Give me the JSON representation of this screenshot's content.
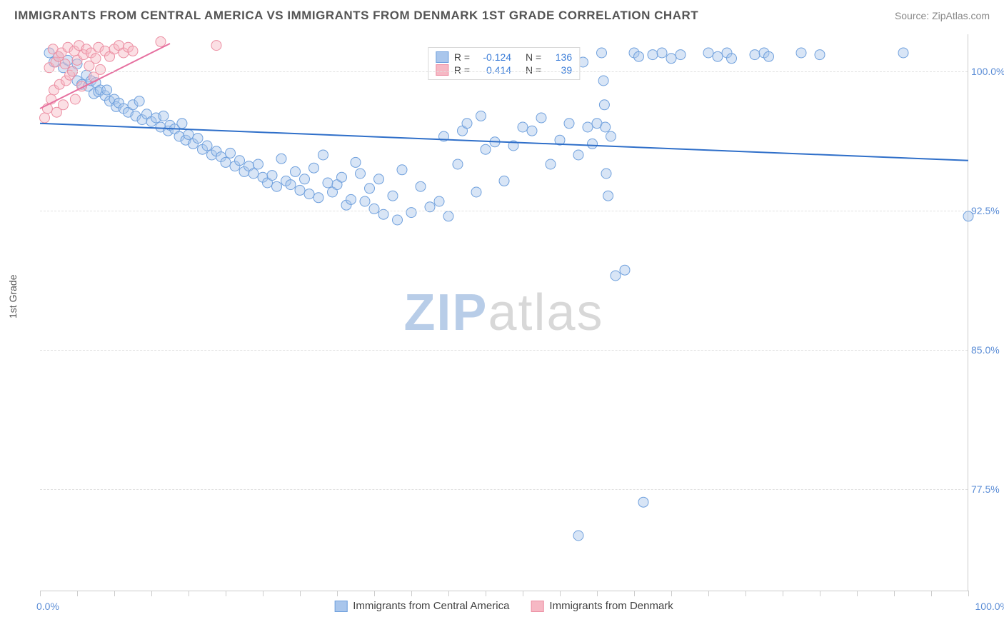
{
  "title": "IMMIGRANTS FROM CENTRAL AMERICA VS IMMIGRANTS FROM DENMARK 1ST GRADE CORRELATION CHART",
  "source_prefix": "Source: ",
  "source_name": "ZipAtlas.com",
  "ylabel": "1st Grade",
  "watermark_bold": "ZIP",
  "watermark_rest": "atlas",
  "chart": {
    "type": "scatter",
    "xlim": [
      0,
      100
    ],
    "ylim": [
      72,
      102
    ],
    "x_min_label": "0.0%",
    "x_max_label": "100.0%",
    "y_ticks": [
      77.5,
      85.0,
      92.5,
      100.0
    ],
    "y_tick_labels": [
      "77.5%",
      "85.0%",
      "92.5%",
      "100.0%"
    ],
    "x_ticks_minor": [
      0,
      4,
      8,
      12,
      16,
      20,
      24,
      28,
      32,
      36,
      40,
      44,
      48,
      52,
      56,
      60,
      64,
      68,
      72,
      76,
      80,
      84,
      88,
      92,
      96,
      100
    ],
    "background_color": "#ffffff",
    "grid_color": "#e0e0e0",
    "axis_color": "#cccccc",
    "tick_label_color": "#5b8dd6",
    "marker_radius": 7,
    "marker_opacity": 0.45,
    "series": [
      {
        "name": "Immigrants from Central America",
        "fill": "#a9c6ec",
        "stroke": "#6fa0dd",
        "trend_color": "#2f6fc9",
        "trend": {
          "x1": 0,
          "y1": 97.2,
          "x2": 100,
          "y2": 95.2
        },
        "R": "-0.124",
        "N": "136",
        "points": [
          [
            1,
            101
          ],
          [
            1.5,
            100.5
          ],
          [
            2,
            100.8
          ],
          [
            2.5,
            100.2
          ],
          [
            3,
            100.6
          ],
          [
            3.5,
            100
          ],
          [
            4,
            100.4
          ],
          [
            4,
            99.5
          ],
          [
            4.5,
            99.3
          ],
          [
            5,
            99.8
          ],
          [
            5.2,
            99.2
          ],
          [
            5.5,
            99.5
          ],
          [
            5.8,
            98.8
          ],
          [
            6,
            99.4
          ],
          [
            6.3,
            98.9
          ],
          [
            6.5,
            99.0
          ],
          [
            7,
            98.7
          ],
          [
            7.2,
            99.0
          ],
          [
            7.5,
            98.4
          ],
          [
            8,
            98.5
          ],
          [
            8.2,
            98.1
          ],
          [
            8.5,
            98.3
          ],
          [
            9,
            98.0
          ],
          [
            9.5,
            97.8
          ],
          [
            10,
            98.2
          ],
          [
            10.3,
            97.6
          ],
          [
            10.7,
            98.4
          ],
          [
            11,
            97.4
          ],
          [
            11.5,
            97.7
          ],
          [
            12,
            97.3
          ],
          [
            12.5,
            97.5
          ],
          [
            13,
            97.0
          ],
          [
            13.3,
            97.6
          ],
          [
            13.8,
            96.8
          ],
          [
            14,
            97.1
          ],
          [
            14.5,
            96.9
          ],
          [
            15,
            96.5
          ],
          [
            15.3,
            97.2
          ],
          [
            15.7,
            96.3
          ],
          [
            16,
            96.6
          ],
          [
            16.5,
            96.1
          ],
          [
            17,
            96.4
          ],
          [
            17.5,
            95.8
          ],
          [
            18,
            96.0
          ],
          [
            18.5,
            95.5
          ],
          [
            19,
            95.7
          ],
          [
            19.5,
            95.4
          ],
          [
            20,
            95.1
          ],
          [
            20.5,
            95.6
          ],
          [
            21,
            94.9
          ],
          [
            21.5,
            95.2
          ],
          [
            22,
            94.6
          ],
          [
            22.5,
            94.9
          ],
          [
            23,
            94.5
          ],
          [
            23.5,
            95.0
          ],
          [
            24,
            94.3
          ],
          [
            24.5,
            94.0
          ],
          [
            25,
            94.4
          ],
          [
            25.5,
            93.8
          ],
          [
            26,
            95.3
          ],
          [
            26.5,
            94.1
          ],
          [
            27,
            93.9
          ],
          [
            27.5,
            94.6
          ],
          [
            28,
            93.6
          ],
          [
            28.5,
            94.2
          ],
          [
            29,
            93.4
          ],
          [
            29.5,
            94.8
          ],
          [
            30,
            93.2
          ],
          [
            30.5,
            95.5
          ],
          [
            31,
            94.0
          ],
          [
            31.5,
            93.5
          ],
          [
            32,
            93.9
          ],
          [
            32.5,
            94.3
          ],
          [
            33,
            92.8
          ],
          [
            33.5,
            93.1
          ],
          [
            34,
            95.1
          ],
          [
            34.5,
            94.5
          ],
          [
            35,
            93.0
          ],
          [
            35.5,
            93.7
          ],
          [
            36,
            92.6
          ],
          [
            36.5,
            94.2
          ],
          [
            37,
            92.3
          ],
          [
            38,
            93.3
          ],
          [
            38.5,
            92.0
          ],
          [
            39,
            94.7
          ],
          [
            40,
            92.4
          ],
          [
            41,
            93.8
          ],
          [
            42,
            92.7
          ],
          [
            43,
            93.0
          ],
          [
            43.5,
            96.5
          ],
          [
            44,
            92.2
          ],
          [
            45,
            95.0
          ],
          [
            45.5,
            96.8
          ],
          [
            46,
            97.2
          ],
          [
            47,
            93.5
          ],
          [
            47.5,
            97.6
          ],
          [
            48,
            95.8
          ],
          [
            49,
            96.2
          ],
          [
            50,
            94.1
          ],
          [
            51,
            96.0
          ],
          [
            52,
            97.0
          ],
          [
            53,
            96.8
          ],
          [
            54,
            97.5
          ],
          [
            55,
            95.0
          ],
          [
            56,
            96.3
          ],
          [
            57,
            97.2
          ],
          [
            58,
            95.5
          ],
          [
            58.5,
            100.5
          ],
          [
            59,
            97.0
          ],
          [
            59.5,
            96.1
          ],
          [
            60,
            97.2
          ],
          [
            60.5,
            101
          ],
          [
            60.7,
            99.5
          ],
          [
            60.8,
            98.2
          ],
          [
            60.9,
            97.0
          ],
          [
            61,
            94.5
          ],
          [
            61.2,
            93.3
          ],
          [
            61.5,
            96.5
          ],
          [
            62,
            89.0
          ],
          [
            63,
            89.3
          ],
          [
            64,
            101
          ],
          [
            64.5,
            100.8
          ],
          [
            66,
            100.9
          ],
          [
            67,
            101
          ],
          [
            68,
            100.7
          ],
          [
            69,
            100.9
          ],
          [
            72,
            101
          ],
          [
            73,
            100.8
          ],
          [
            74,
            101
          ],
          [
            74.5,
            100.7
          ],
          [
            77,
            100.9
          ],
          [
            78,
            101
          ],
          [
            78.5,
            100.8
          ],
          [
            82,
            101
          ],
          [
            84,
            100.9
          ],
          [
            93,
            101
          ],
          [
            100,
            92.2
          ],
          [
            58,
            75.0
          ],
          [
            65,
            76.8
          ]
        ]
      },
      {
        "name": "Immigrants from Denmark",
        "fill": "#f6b8c4",
        "stroke": "#ec8fa3",
        "trend_color": "#e670a0",
        "trend": {
          "x1": 0,
          "y1": 98.0,
          "x2": 14,
          "y2": 101.5
        },
        "R": "0.414",
        "N": "39",
        "points": [
          [
            0.5,
            97.5
          ],
          [
            0.8,
            98.0
          ],
          [
            1,
            100.2
          ],
          [
            1.2,
            98.5
          ],
          [
            1.4,
            101.2
          ],
          [
            1.5,
            99.0
          ],
          [
            1.7,
            100.5
          ],
          [
            1.8,
            97.8
          ],
          [
            2,
            100.8
          ],
          [
            2.1,
            99.3
          ],
          [
            2.3,
            101.0
          ],
          [
            2.5,
            98.2
          ],
          [
            2.7,
            100.4
          ],
          [
            2.8,
            99.5
          ],
          [
            3,
            101.3
          ],
          [
            3.2,
            99.8
          ],
          [
            3.5,
            100.0
          ],
          [
            3.7,
            101.1
          ],
          [
            3.8,
            98.5
          ],
          [
            4,
            100.6
          ],
          [
            4.2,
            101.4
          ],
          [
            4.5,
            99.2
          ],
          [
            4.7,
            100.9
          ],
          [
            5,
            101.2
          ],
          [
            5.3,
            100.3
          ],
          [
            5.5,
            101.0
          ],
          [
            5.8,
            99.7
          ],
          [
            6,
            100.7
          ],
          [
            6.3,
            101.3
          ],
          [
            6.5,
            100.1
          ],
          [
            7,
            101.1
          ],
          [
            7.5,
            100.8
          ],
          [
            8,
            101.2
          ],
          [
            8.5,
            101.4
          ],
          [
            9,
            101.0
          ],
          [
            9.5,
            101.3
          ],
          [
            10,
            101.1
          ],
          [
            13,
            101.6
          ],
          [
            19,
            101.4
          ]
        ]
      }
    ]
  },
  "legend_stats_label_R": "R =",
  "legend_stats_label_N": "N ="
}
